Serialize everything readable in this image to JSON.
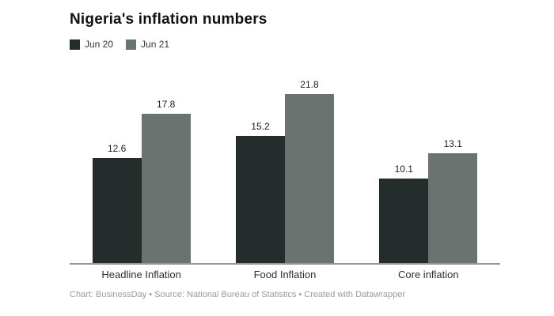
{
  "header": {
    "title": "Nigeria's inflation numbers"
  },
  "footer": {
    "text": "Chart: BusinessDay • Source: National Bureau of Statistics • Created with Datawrapper"
  },
  "colors": {
    "series_jun20": "#242d2b",
    "series_jun21": "#6b7370",
    "axis_line": "#979797",
    "footer_text": "#9b9b9b",
    "background": "#ffffff"
  },
  "chart_data": {
    "type": "bar",
    "title": "Nigeria's inflation numbers",
    "categories": [
      "Headline Inflation",
      "Food Inflation",
      "Core inflation"
    ],
    "series": [
      {
        "name": "Jun 20",
        "color": "#242d2b",
        "values": [
          12.6,
          15.2,
          10.1
        ]
      },
      {
        "name": "Jun 21",
        "color": "#6b7370",
        "values": [
          17.8,
          21.8,
          13.1
        ]
      }
    ],
    "xlabel": "",
    "ylabel": "",
    "ylim": [
      0,
      22
    ],
    "grid": false,
    "value_labels": true,
    "legend_position": "top-left",
    "legend_labels": [
      "Jun 20",
      "Jun 21"
    ]
  }
}
